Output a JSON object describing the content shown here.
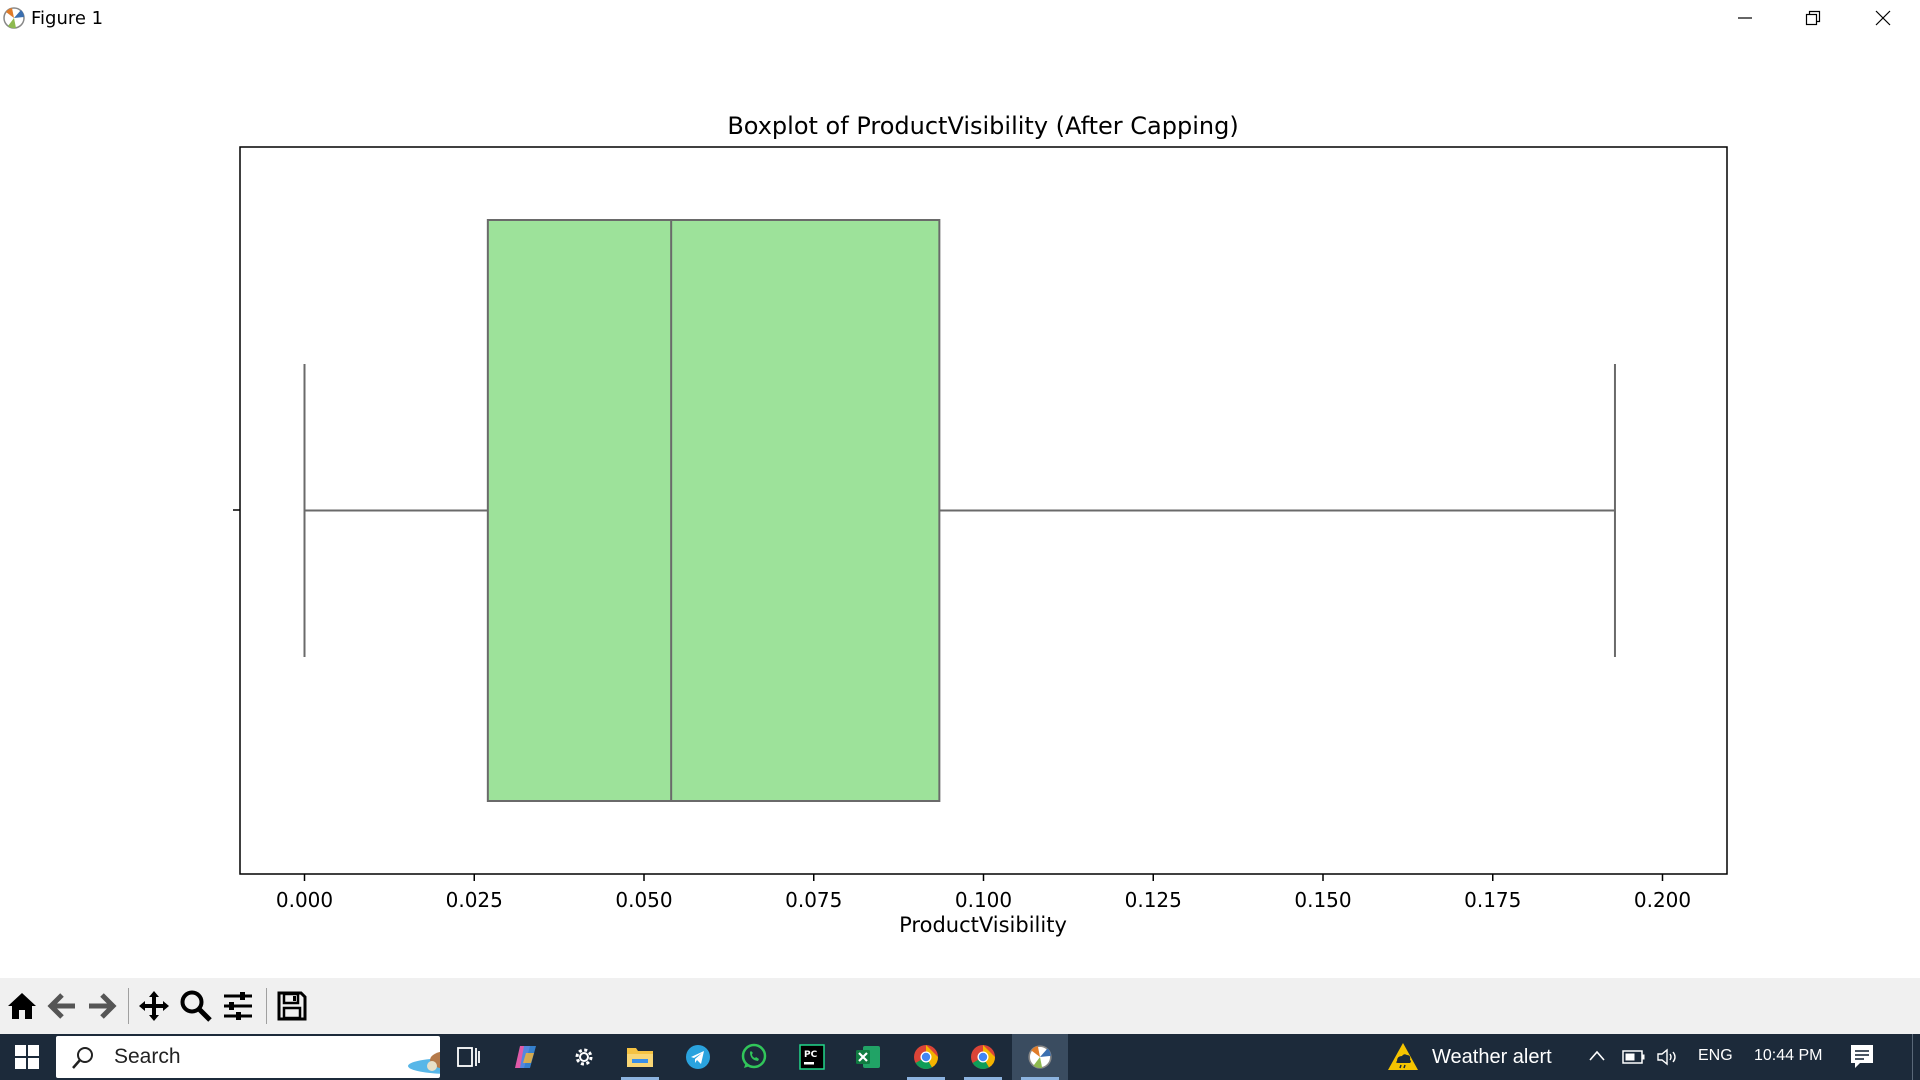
{
  "window": {
    "title": "Figure 1",
    "controls": [
      "minimize-icon",
      "restore-icon",
      "close-icon"
    ]
  },
  "chart_data": {
    "type": "boxplot",
    "title": "Boxplot of ProductVisibility (After Capping)",
    "xlabel": "ProductVisibility",
    "orientation": "horizontal",
    "xlim": [
      -0.0095,
      0.2095
    ],
    "xticks": [
      0.0,
      0.025,
      0.05,
      0.075,
      0.1,
      0.125,
      0.15,
      0.175,
      0.2
    ],
    "xtick_labels": [
      "0.000",
      "0.025",
      "0.050",
      "0.075",
      "0.100",
      "0.125",
      "0.150",
      "0.175",
      "0.200"
    ],
    "box": {
      "whisker_low": 0.0,
      "q1": 0.027,
      "median": 0.054,
      "q3": 0.0935,
      "whisker_high": 0.193,
      "fill_color": "#9de29a",
      "line_color": "#6a6a6a"
    },
    "grid": false
  },
  "toolbar": {
    "buttons": [
      "home-icon",
      "back-icon",
      "forward-icon",
      "pan-icon",
      "zoom-icon",
      "configure-subplots-icon",
      "save-icon"
    ]
  },
  "taskbar": {
    "search_placeholder": "Search",
    "weather_text": "Weather alert",
    "language": "ENG",
    "time": "10:44 PM",
    "apps": [
      "task-view-icon",
      "copilot-icon",
      "settings-icon",
      "file-explorer-icon",
      "telegram-icon",
      "whatsapp-icon",
      "pycharm-icon",
      "excel-icon",
      "chrome-icon",
      "chrome-alt-icon",
      "matplotlib-figure-icon"
    ],
    "colors": {
      "taskbar": "#1c2a3a",
      "accent": "#8cb3df"
    }
  }
}
